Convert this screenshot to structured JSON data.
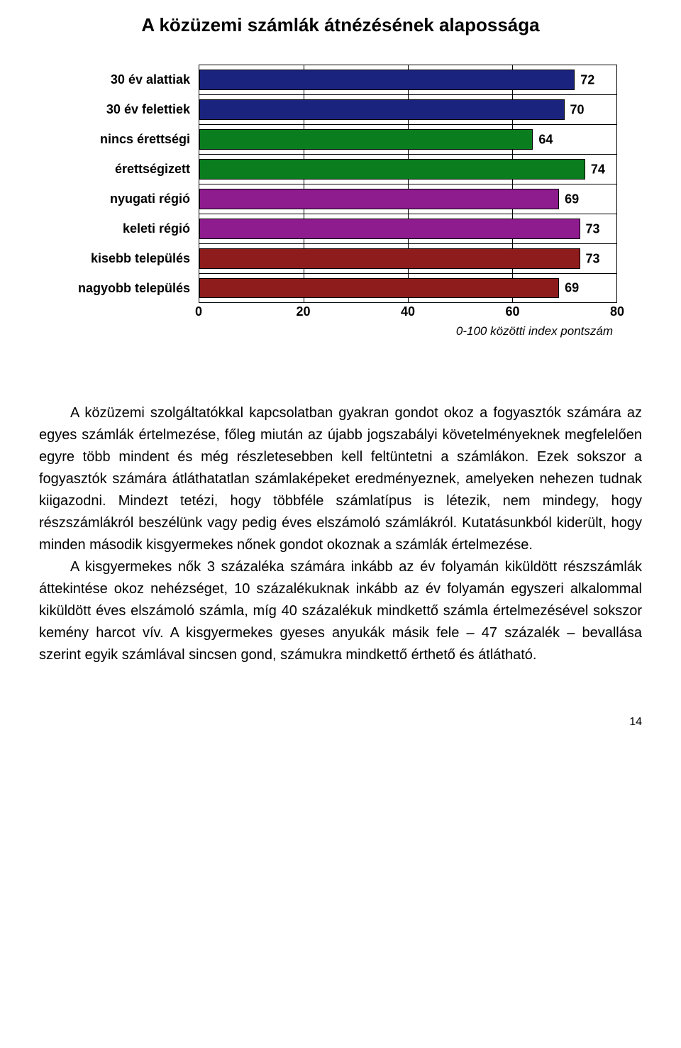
{
  "title": "A közüzemi számlák átnézésének alapossága",
  "chart": {
    "type": "bar-horizontal",
    "xlim": [
      0,
      80
    ],
    "xtick_step": 20,
    "xticks": [
      0,
      20,
      40,
      60,
      80
    ],
    "background_color": "#ffffff",
    "border_color": "#000000",
    "label_fontsize": 18,
    "value_fontsize": 18,
    "axis_caption": "0-100 közötti index pontszám",
    "groups": [
      {
        "color": "#1a237e",
        "bars": [
          {
            "label": "30 év alattiak",
            "value": 72
          },
          {
            "label": "30 év felettiek",
            "value": 70
          }
        ]
      },
      {
        "color": "#0a7d1e",
        "bars": [
          {
            "label": "nincs érettségi",
            "value": 64
          },
          {
            "label": "érettségizett",
            "value": 74
          }
        ]
      },
      {
        "color": "#8e1c8e",
        "bars": [
          {
            "label": "nyugati régió",
            "value": 69
          },
          {
            "label": "keleti régió",
            "value": 73
          }
        ]
      },
      {
        "color": "#8e1c1c",
        "bars": [
          {
            "label": "kisebb település",
            "value": 73
          },
          {
            "label": "nagyobb település",
            "value": 69
          }
        ]
      }
    ]
  },
  "paragraphs": [
    "A közüzemi szolgáltatókkal kapcsolatban gyakran gondot okoz a fogyasztók számára az egyes számlák értelmezése, főleg miután az újabb jogszabályi követelményeknek megfelelően egyre több mindent és még részletesebben kell feltüntetni a számlákon. Ezek sokszor a fogyasztók számára átláthatatlan számlaképeket eredményeznek, amelyeken nehezen tudnak kiigazodni. Mindezt tetézi, hogy többféle számlatípus is létezik, nem mindegy, hogy részszámlákról beszélünk vagy pedig éves elszámoló számlákról. Kutatásunkból kiderült, hogy minden második kisgyermekes nőnek gondot okoznak a számlák értelmezése.",
    "A kisgyermekes nők 3 százaléka számára inkább az év folyamán kiküldött részszámlák áttekintése okoz nehézséget, 10 százalékuknak inkább az év folyamán egyszeri alkalommal kiküldött éves elszámoló számla, míg 40 százalékuk mindkettő számla értelmezésével sokszor kemény harcot vív. A kisgyermekes gyeses anyukák másik fele – 47 százalék – bevallása szerint egyik számlával sincsen gond, számukra mindkettő érthető és átlátható."
  ],
  "page_number": "14"
}
